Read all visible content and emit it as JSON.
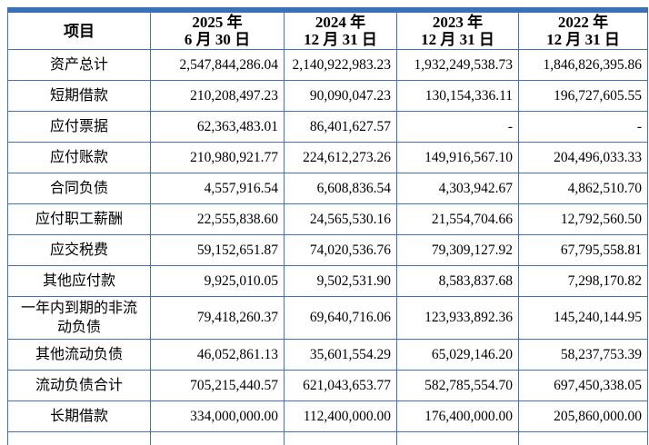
{
  "table": {
    "columns": {
      "item": "项目",
      "periods": [
        {
          "line1": "2025 年",
          "line2": "6 月 30 日"
        },
        {
          "line1": "2024 年",
          "line2": "12 月 31 日"
        },
        {
          "line1": "2023 年",
          "line2": "12 月 31 日"
        },
        {
          "line1": "2022 年",
          "line2": "12 月 31 日"
        }
      ]
    },
    "rows": [
      {
        "label": "资产总计",
        "values": [
          "2,547,844,286.04",
          "2,140,922,983.23",
          "1,932,249,538.73",
          "1,846,826,395.86"
        ]
      },
      {
        "label": "短期借款",
        "values": [
          "210,208,497.23",
          "90,090,047.23",
          "130,154,336.11",
          "196,727,605.55"
        ]
      },
      {
        "label": "应付票据",
        "values": [
          "62,363,483.01",
          "86,401,627.57",
          "-",
          "-"
        ]
      },
      {
        "label": "应付账款",
        "values": [
          "210,980,921.77",
          "224,612,273.26",
          "149,916,567.10",
          "204,496,033.33"
        ]
      },
      {
        "label": "合同负债",
        "values": [
          "4,557,916.54",
          "6,608,836.54",
          "4,303,942.67",
          "4,862,510.70"
        ]
      },
      {
        "label": "应付职工薪酬",
        "values": [
          "22,555,838.60",
          "24,565,530.16",
          "21,554,704.66",
          "12,792,560.50"
        ]
      },
      {
        "label": "应交税费",
        "values": [
          "59,152,651.87",
          "74,020,536.76",
          "79,309,127.92",
          "67,795,558.81"
        ]
      },
      {
        "label": "其他应付款",
        "values": [
          "9,925,010.05",
          "9,502,531.90",
          "8,583,837.68",
          "7,298,170.82"
        ]
      },
      {
        "label": "一年内到期的非流动负债",
        "values": [
          "79,418,260.37",
          "69,640,716.06",
          "123,933,892.36",
          "145,240,144.95"
        ]
      },
      {
        "label": "其他流动负债",
        "values": [
          "46,052,861.13",
          "35,601,554.29",
          "65,029,146.20",
          "58,237,753.39"
        ]
      },
      {
        "label": "流动负债合计",
        "values": [
          "705,215,440.57",
          "621,043,653.77",
          "582,785,554.70",
          "697,450,338.05"
        ]
      },
      {
        "label": "长期借款",
        "values": [
          "334,000,000.00",
          "112,400,000.00",
          "176,400,000.00",
          "205,860,000.00"
        ]
      }
    ]
  },
  "colors": {
    "border": "#3f74b8",
    "top_bar": "#3a70b8",
    "text": "#000000",
    "background": "#ffffff"
  }
}
